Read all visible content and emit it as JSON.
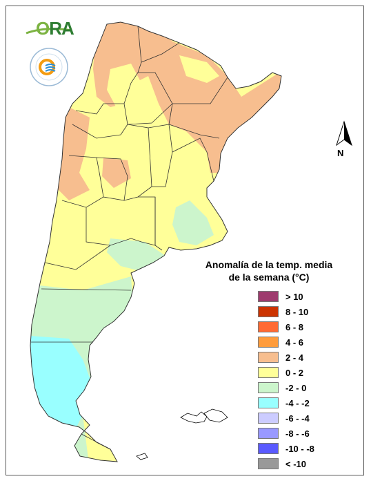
{
  "logo": {
    "text_o": "O",
    "text_rest": "RA"
  },
  "north_label": "N",
  "legend": {
    "title_line1": "Anomalía de la temp. media",
    "title_line2": "de la semana (°C)",
    "items": [
      {
        "label": "> 10",
        "color": "#9e3b6e"
      },
      {
        "label": "8 - 10",
        "color": "#cc3300"
      },
      {
        "label": "6 - 8",
        "color": "#ff6a33"
      },
      {
        "label": "4 - 6",
        "color": "#ff9c3c"
      },
      {
        "label": "2 - 4",
        "color": "#f7be8f"
      },
      {
        "label": "0 - 2",
        "color": "#ffff99"
      },
      {
        "label": "-2 - 0",
        "color": "#ccf5cc"
      },
      {
        "label": "-4 - -2",
        "color": "#99ffff"
      },
      {
        "label": "-6 - -4",
        "color": "#ccccff"
      },
      {
        "label": "-8 - -6",
        "color": "#9999ff"
      },
      {
        "label": "-10 - -8",
        "color": "#5a5aff"
      },
      {
        "label": "< -10",
        "color": "#999999"
      }
    ]
  },
  "map_colors": {
    "warm": "#f7be8f",
    "mild": "#ffff99",
    "cool": "#ccf5cc",
    "cold": "#99ffff",
    "border": "#333333"
  }
}
